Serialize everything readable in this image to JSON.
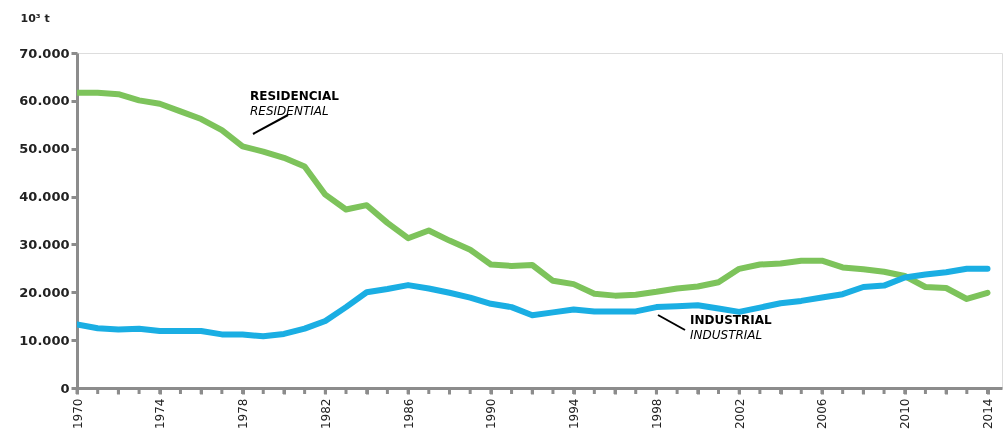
{
  "chart_data": {
    "type": "line",
    "ylabel": "10³ t",
    "x": [
      1970,
      1971,
      1972,
      1973,
      1974,
      1975,
      1976,
      1977,
      1978,
      1979,
      1980,
      1981,
      1982,
      1983,
      1984,
      1985,
      1986,
      1987,
      1988,
      1989,
      1990,
      1991,
      1992,
      1993,
      1994,
      1995,
      1996,
      1997,
      1998,
      1999,
      2000,
      2001,
      2002,
      2003,
      2004,
      2005,
      2006,
      2007,
      2008,
      2009,
      2010,
      2011,
      2012,
      2013,
      2014
    ],
    "series": [
      {
        "color": "#7dc35b",
        "values": [
          61700,
          61700,
          61400,
          60100,
          59400,
          57800,
          56200,
          53900,
          50500,
          49400,
          48100,
          46300,
          40400,
          37300,
          38200,
          34500,
          31300,
          32900,
          30800,
          28900,
          25800,
          25500,
          25700,
          22400,
          21700,
          19700,
          19300,
          19500,
          20100,
          20800,
          21200,
          22100,
          24900,
          25800,
          26000,
          26600,
          26600,
          25200,
          24800,
          24300,
          23400,
          21100,
          20900,
          18600,
          19900
        ]
      },
      {
        "color": "#1aaee3",
        "values": [
          13300,
          12500,
          12200,
          12400,
          11900,
          11900,
          11900,
          11200,
          11200,
          10800,
          11300,
          12400,
          14000,
          16900,
          20000,
          20700,
          21500,
          20800,
          19900,
          18900,
          17600,
          16900,
          15200,
          15800,
          16400,
          16000,
          16000,
          16000,
          16900,
          17100,
          17300,
          16600,
          15900,
          16800,
          17700,
          18200,
          18900,
          19600,
          21100,
          21400,
          23100,
          23700,
          24200,
          24900,
          24900
        ]
      }
    ],
    "annotations": [
      "RESIDENCIAL",
      "RESIDENTIAL",
      "INDUSTRIAL",
      "INDUSTRIAL"
    ],
    "xlim": [
      1970,
      2014.7
    ],
    "xticks": [
      1970,
      {
        "value": 1971,
        "label": null
      },
      {
        "value": 1972,
        "label": null
      },
      {
        "value": 1973,
        "label": null
      },
      1974,
      {
        "value": 1975,
        "label": null
      },
      {
        "value": 1976,
        "label": null
      },
      {
        "value": 1977,
        "label": null
      },
      1978,
      {
        "value": 1979,
        "label": null
      },
      {
        "value": 1980,
        "label": null
      },
      {
        "value": 1981,
        "label": null
      },
      1982,
      {
        "value": 1983,
        "label": null
      },
      {
        "value": 1984,
        "label": null
      },
      {
        "value": 1985,
        "label": null
      },
      1986,
      {
        "value": 1987,
        "label": null
      },
      {
        "value": 1988,
        "label": null
      },
      {
        "value": 1989,
        "label": null
      },
      1990,
      {
        "value": 1991,
        "label": null
      },
      {
        "value": 1992,
        "label": null
      },
      {
        "value": 1993,
        "label": null
      },
      1994,
      {
        "value": 1995,
        "label": null
      },
      {
        "value": 1996,
        "label": null
      },
      {
        "value": 1997,
        "label": null
      },
      1998,
      {
        "value": 1999,
        "label": null
      },
      {
        "value": 2000,
        "label": null
      },
      {
        "value": 2001,
        "label": null
      },
      2002,
      {
        "value": 2003,
        "label": null
      },
      {
        "value": 2004,
        "label": null
      },
      {
        "value": 2005,
        "label": null
      },
      2006,
      {
        "value": 2007,
        "label": null
      },
      {
        "value": 2008,
        "label": null
      },
      {
        "value": 2009,
        "label": null
      },
      2010,
      {
        "value": 2011,
        "label": null
      },
      {
        "value": 2012,
        "label": null
      },
      {
        "value": 2013,
        "label": null
      },
      2014
    ],
    "ylim": [
      0,
      70000
    ],
    "yticks": [
      0,
      {
        "value": 10000,
        "label": "10.000"
      },
      {
        "value": 20000,
        "label": "20.000"
      },
      {
        "value": 30000,
        "label": "30.000"
      },
      {
        "value": 40000,
        "label": "40.000"
      },
      {
        "value": 50000,
        "label": "50.000"
      },
      {
        "value": 60000,
        "label": "60.000"
      },
      {
        "value": 70000,
        "label": "70.000"
      }
    ],
    "grid": false,
    "legend": false,
    "line_style": "solid",
    "marker": "none"
  }
}
